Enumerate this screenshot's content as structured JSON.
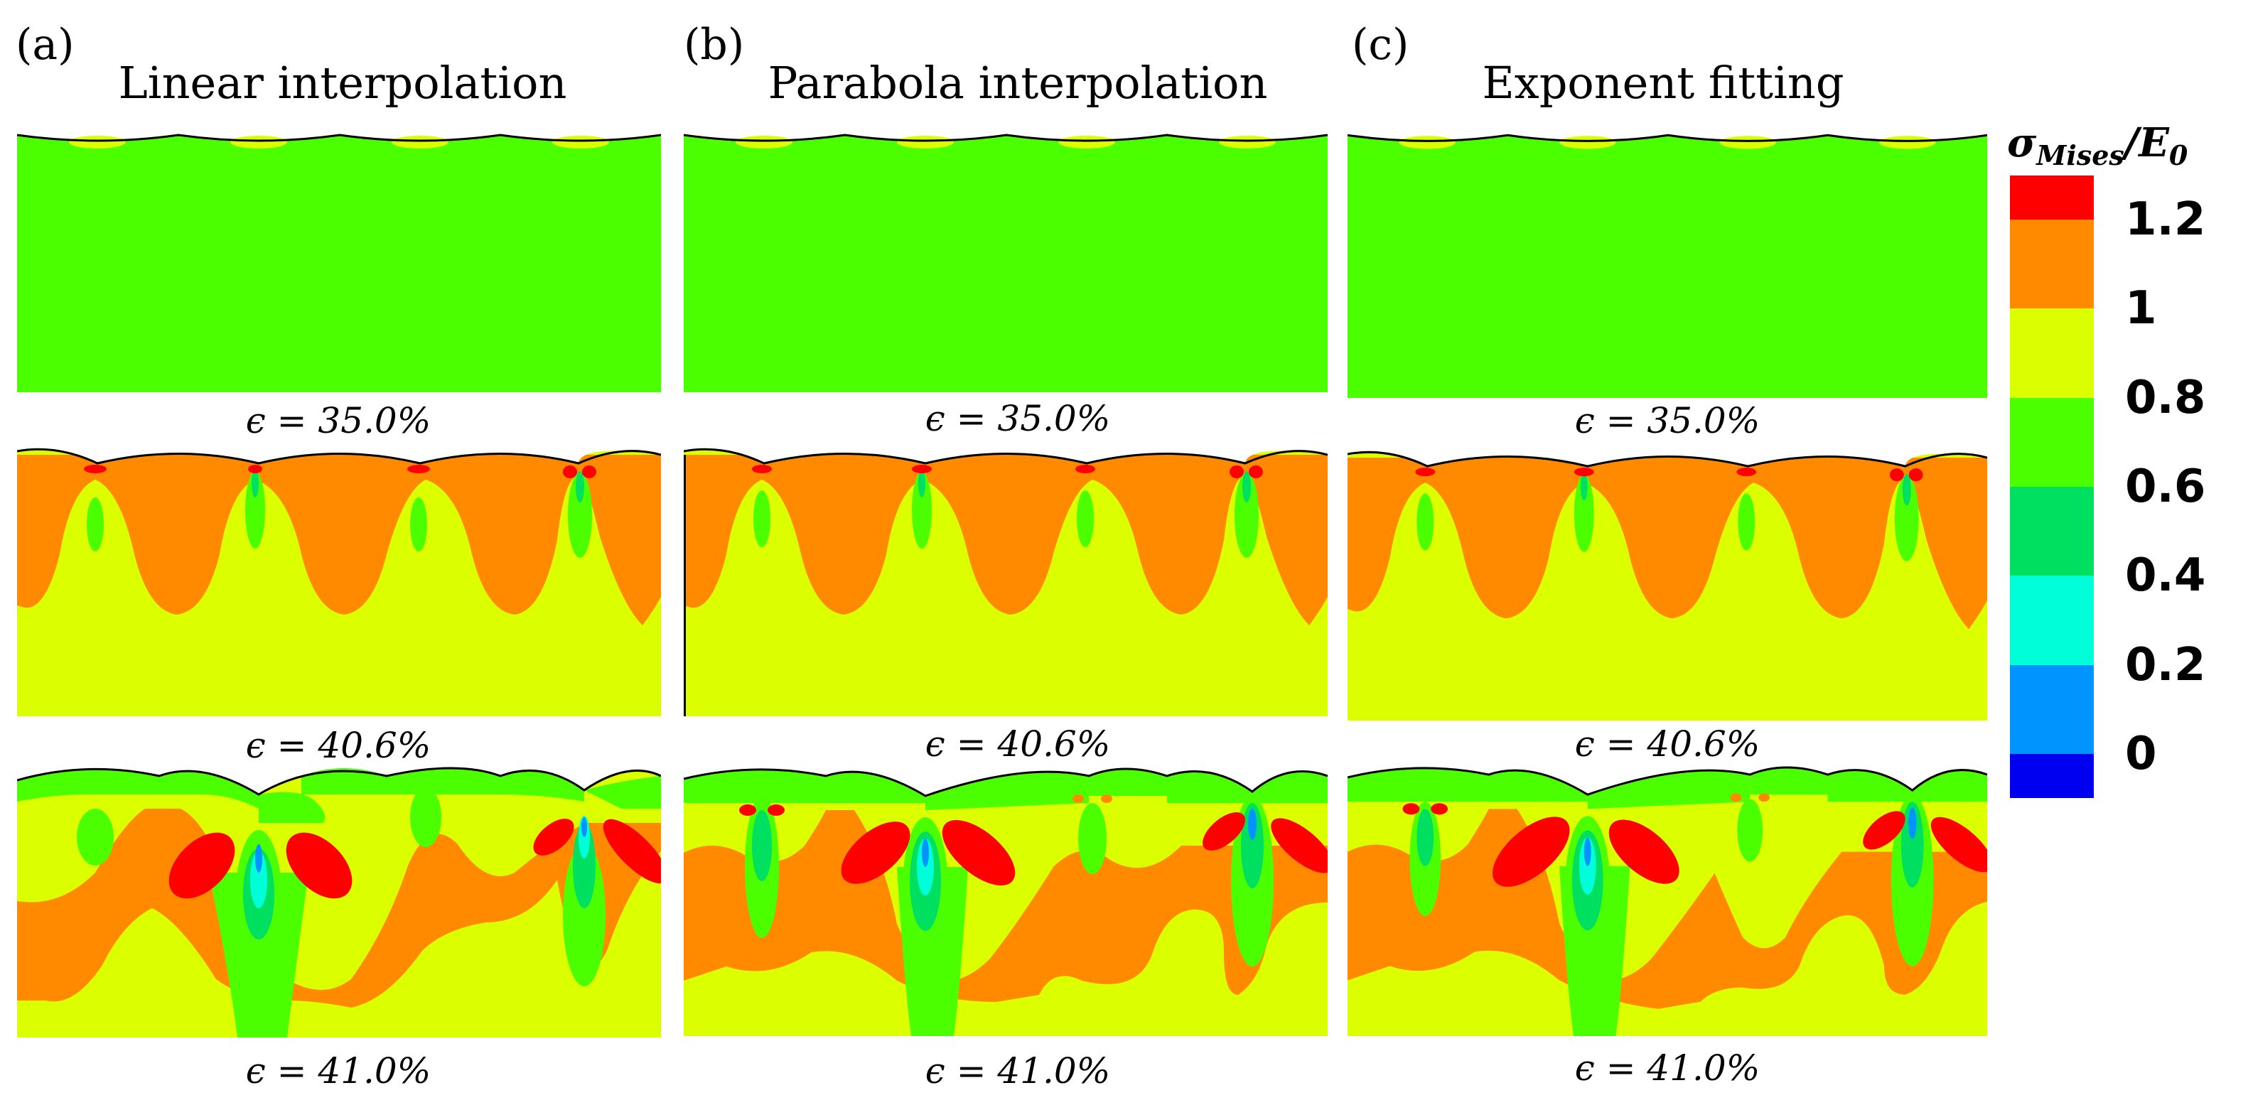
{
  "panels": [
    {
      "letter": "(a)",
      "title": "Linear interpolation"
    },
    {
      "letter": "(b)",
      "title": "Parabola interpolation"
    },
    {
      "letter": "(c)",
      "title": "Exponent fitting"
    }
  ],
  "strains": [
    "ϵ = 35.0%",
    "ϵ = 40.6%",
    "ϵ = 41.0%"
  ],
  "colorbar": {
    "title_main": "σ",
    "title_sub": "Mises",
    "title_rest": "/E",
    "title_sub2": "0",
    "labels": [
      "1.2",
      "1",
      "0.8",
      "0.6",
      "0.4",
      "0.2",
      "0"
    ],
    "colors": [
      "#ff0000",
      "#ff8a00",
      "#dcff00",
      "#4cff00",
      "#00e060",
      "#00ffd8",
      "#0094ff",
      "#0000f0"
    ]
  },
  "colors": {
    "green": "#4cff00",
    "yellow": "#dcff00",
    "orange": "#ff8a00",
    "red": "#ff0000",
    "lightgreen": "#00e060",
    "cyan": "#00ffd8",
    "blue": "#0094ff"
  }
}
